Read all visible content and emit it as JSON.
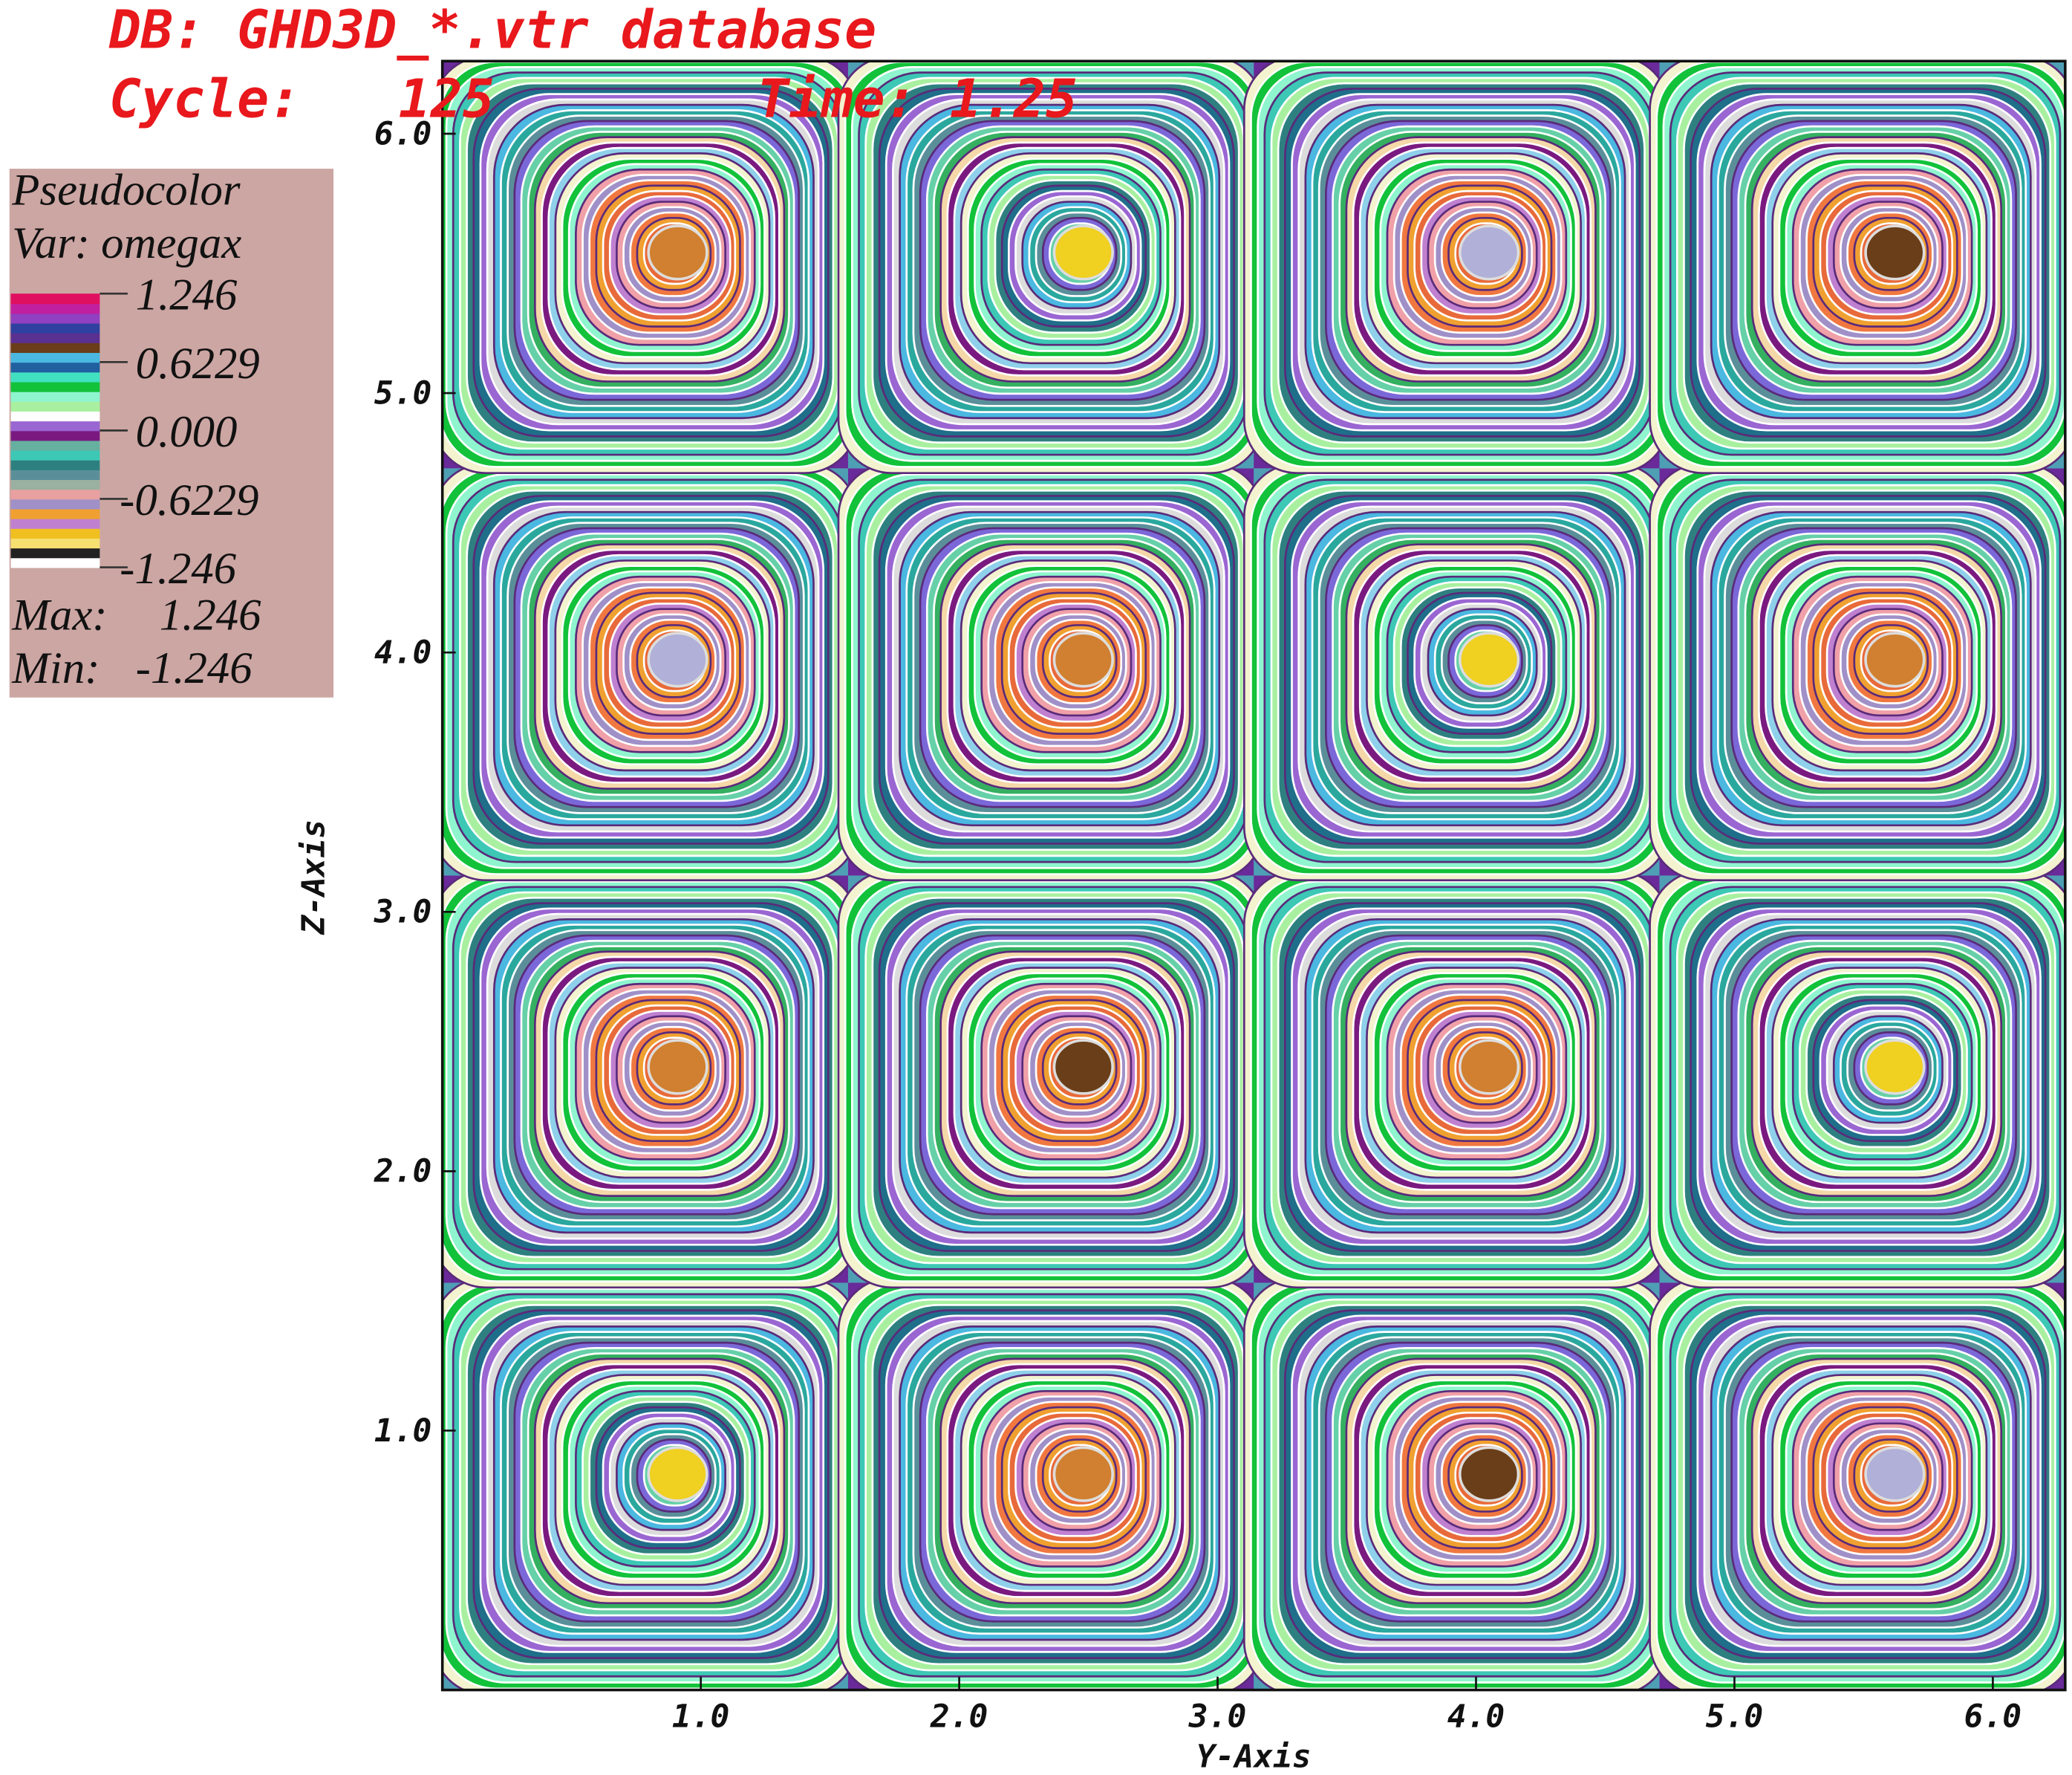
{
  "chart_data": {
    "type": "pseudocolor",
    "database": "DB: GHD3D_*.vtr database",
    "cycle_label": "Cycle:",
    "cycle": 125,
    "time_label": "Time:",
    "time": 1.25,
    "legend": {
      "plot": "Pseudocolor",
      "variable": "Var: omegax",
      "range": [
        -1.246,
        1.246
      ],
      "ticks": [
        1.246,
        0.6229,
        {
          "value": 0,
          "label": "0.000"
        },
        -0.6229,
        -1.246
      ],
      "max_label": "Max:",
      "max": 1.246,
      "min_label": "Min:",
      "min": -1.246
    },
    "x_label": "Y-Axis",
    "y_label": "Z-Axis",
    "xlim": [
      0,
      6.28
    ],
    "ylim": [
      0,
      6.28
    ],
    "xticks": [
      {
        "value": 1,
        "label": "1.0"
      },
      {
        "value": 2,
        "label": "2.0"
      },
      {
        "value": 3,
        "label": "3.0"
      },
      {
        "value": 4,
        "label": "4.0"
      },
      {
        "value": 5,
        "label": "5.0"
      },
      {
        "value": 6,
        "label": "6.0"
      }
    ],
    "yticks": [
      {
        "value": 1,
        "label": "1.0"
      },
      {
        "value": 2,
        "label": "2.0"
      },
      {
        "value": 3,
        "label": "3.0"
      },
      {
        "value": 4,
        "label": "4.0"
      },
      {
        "value": 5,
        "label": "5.0"
      },
      {
        "value": 6,
        "label": "6.0"
      }
    ]
  }
}
